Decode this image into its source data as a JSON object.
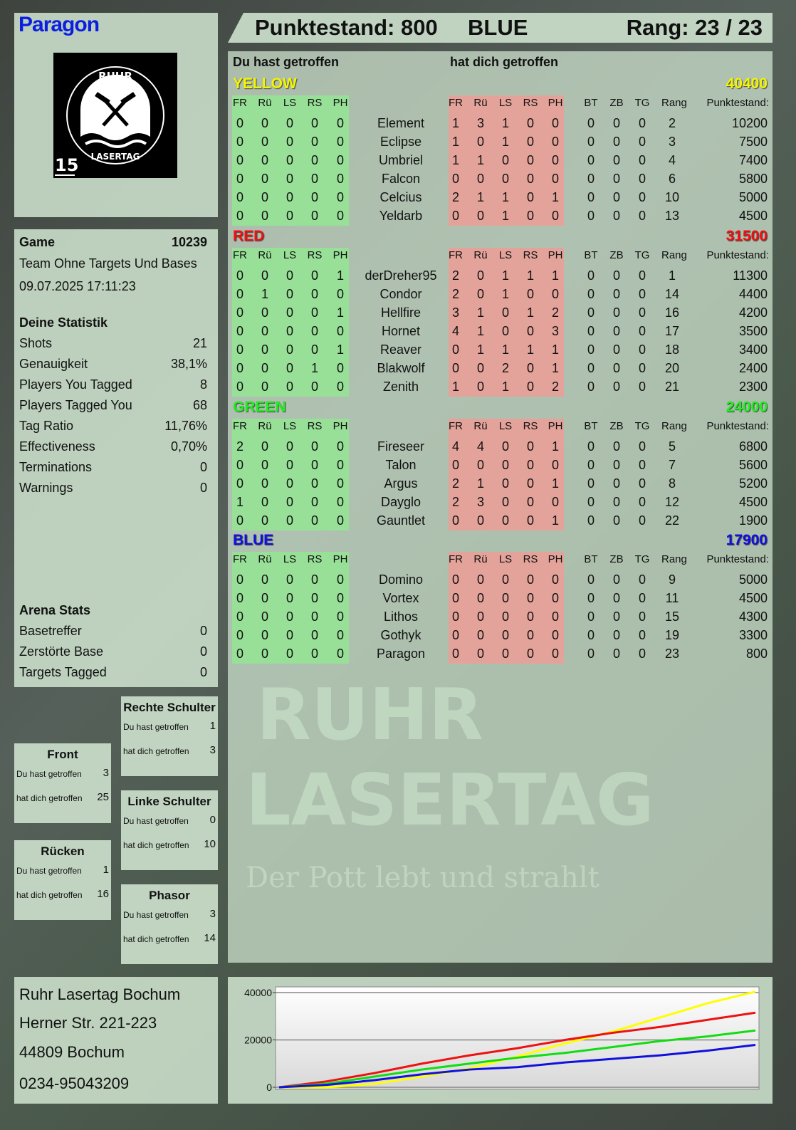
{
  "player": {
    "name": "Paragon",
    "logo_text": "RUHR LASERTAG",
    "logo_number": "15"
  },
  "header": {
    "score_label": "Punktestand: 800",
    "team": "BLUE",
    "rank_label": "Rang: 23 / 23"
  },
  "game": {
    "label": "Game",
    "id": "10239",
    "mode": "Team Ohne Targets Und Bases",
    "datetime": "09.07.2025 17:11:23"
  },
  "stats": {
    "title": "Deine Statistik",
    "items": [
      {
        "label": "Shots",
        "value": "21"
      },
      {
        "label": "Genauigkeit",
        "value": "38,1%"
      },
      {
        "label": "Players You Tagged",
        "value": "8"
      },
      {
        "label": "Players Tagged You",
        "value": "68"
      },
      {
        "label": "Tag Ratio",
        "value": "11,76%"
      },
      {
        "label": "Effectiveness",
        "value": "0,70%"
      },
      {
        "label": "Terminations",
        "value": "0"
      },
      {
        "label": "Warnings",
        "value": "0"
      }
    ]
  },
  "arena": {
    "title": "Arena Stats",
    "items": [
      {
        "label": "Basetreffer",
        "value": "0"
      },
      {
        "label": "Zerstörte Base",
        "value": "0"
      },
      {
        "label": "Targets Tagged",
        "value": "0"
      }
    ]
  },
  "zones": [
    {
      "title": "Rechte Schulter",
      "hit_label": "Du hast getroffen",
      "hit": "1",
      "got_label": "hat dich getroffen",
      "got": "3"
    },
    {
      "title": "Front",
      "hit_label": "Du hast getroffen",
      "hit": "3",
      "got_label": "hat dich getroffen",
      "got": "25"
    },
    {
      "title": "Linke Schulter",
      "hit_label": "Du hast getroffen",
      "hit": "0",
      "got_label": "hat dich getroffen",
      "got": "10"
    },
    {
      "title": "Rücken",
      "hit_label": "Du hast getroffen",
      "hit": "1",
      "got_label": "hat dich getroffen",
      "got": "16"
    },
    {
      "title": "Phasor",
      "hit_label": "Du hast getroffen",
      "hit": "3",
      "got_label": "hat dich getroffen",
      "got": "14"
    }
  ],
  "address": [
    "Ruhr Lasertag Bochum",
    "Herner Str. 221-223",
    "44809 Bochum",
    "0234-95043209"
  ],
  "main": {
    "you_hit": "Du hast getroffen",
    "hit_you": "hat dich getroffen",
    "columns": [
      "FR",
      "Rü",
      "LS",
      "RS",
      "PH",
      "FR",
      "Rü",
      "LS",
      "RS",
      "PH",
      "BT",
      "ZB",
      "TG",
      "Rang",
      "Punktestand:"
    ],
    "teams": [
      {
        "name": "YELLOW",
        "score": "40400",
        "color": "#f5f500",
        "players": [
          {
            "name": "Element",
            "hit": [
              0,
              0,
              0,
              0,
              0
            ],
            "got": [
              1,
              3,
              1,
              0,
              0
            ],
            "bt": 0,
            "zb": 0,
            "tg": 0,
            "rank": 2,
            "score": 10200
          },
          {
            "name": "Eclipse",
            "hit": [
              0,
              0,
              0,
              0,
              0
            ],
            "got": [
              1,
              0,
              1,
              0,
              0
            ],
            "bt": 0,
            "zb": 0,
            "tg": 0,
            "rank": 3,
            "score": 7500
          },
          {
            "name": "Umbriel",
            "hit": [
              0,
              0,
              0,
              0,
              0
            ],
            "got": [
              1,
              1,
              0,
              0,
              0
            ],
            "bt": 0,
            "zb": 0,
            "tg": 0,
            "rank": 4,
            "score": 7400
          },
          {
            "name": "Falcon",
            "hit": [
              0,
              0,
              0,
              0,
              0
            ],
            "got": [
              0,
              0,
              0,
              0,
              0
            ],
            "bt": 0,
            "zb": 0,
            "tg": 0,
            "rank": 6,
            "score": 5800
          },
          {
            "name": "Celcius",
            "hit": [
              0,
              0,
              0,
              0,
              0
            ],
            "got": [
              2,
              1,
              1,
              0,
              1
            ],
            "bt": 0,
            "zb": 0,
            "tg": 0,
            "rank": 10,
            "score": 5000
          },
          {
            "name": "Yeldarb",
            "hit": [
              0,
              0,
              0,
              0,
              0
            ],
            "got": [
              0,
              0,
              1,
              0,
              0
            ],
            "bt": 0,
            "zb": 0,
            "tg": 0,
            "rank": 13,
            "score": 4500
          }
        ]
      },
      {
        "name": "RED",
        "score": "31500",
        "color": "#ee1111",
        "players": [
          {
            "name": "derDreher95",
            "hit": [
              0,
              0,
              0,
              0,
              1
            ],
            "got": [
              2,
              0,
              1,
              1,
              1
            ],
            "bt": 0,
            "zb": 0,
            "tg": 0,
            "rank": 1,
            "score": 11300
          },
          {
            "name": "Condor",
            "hit": [
              0,
              1,
              0,
              0,
              0
            ],
            "got": [
              2,
              0,
              1,
              0,
              0
            ],
            "bt": 0,
            "zb": 0,
            "tg": 0,
            "rank": 14,
            "score": 4400
          },
          {
            "name": "Hellfire",
            "hit": [
              0,
              0,
              0,
              0,
              1
            ],
            "got": [
              3,
              1,
              0,
              1,
              2
            ],
            "bt": 0,
            "zb": 0,
            "tg": 0,
            "rank": 16,
            "score": 4200
          },
          {
            "name": "Hornet",
            "hit": [
              0,
              0,
              0,
              0,
              0
            ],
            "got": [
              4,
              1,
              0,
              0,
              3
            ],
            "bt": 0,
            "zb": 0,
            "tg": 0,
            "rank": 17,
            "score": 3500
          },
          {
            "name": "Reaver",
            "hit": [
              0,
              0,
              0,
              0,
              1
            ],
            "got": [
              0,
              1,
              1,
              1,
              1
            ],
            "bt": 0,
            "zb": 0,
            "tg": 0,
            "rank": 18,
            "score": 3400
          },
          {
            "name": "Blakwolf",
            "hit": [
              0,
              0,
              0,
              1,
              0
            ],
            "got": [
              0,
              0,
              2,
              0,
              1
            ],
            "bt": 0,
            "zb": 0,
            "tg": 0,
            "rank": 20,
            "score": 2400
          },
          {
            "name": "Zenith",
            "hit": [
              0,
              0,
              0,
              0,
              0
            ],
            "got": [
              1,
              0,
              1,
              0,
              2
            ],
            "bt": 0,
            "zb": 0,
            "tg": 0,
            "rank": 21,
            "score": 2300
          }
        ]
      },
      {
        "name": "GREEN",
        "score": "24000",
        "color": "#22ee22",
        "players": [
          {
            "name": "Fireseer",
            "hit": [
              2,
              0,
              0,
              0,
              0
            ],
            "got": [
              4,
              4,
              0,
              0,
              1
            ],
            "bt": 0,
            "zb": 0,
            "tg": 0,
            "rank": 5,
            "score": 6800
          },
          {
            "name": "Talon",
            "hit": [
              0,
              0,
              0,
              0,
              0
            ],
            "got": [
              0,
              0,
              0,
              0,
              0
            ],
            "bt": 0,
            "zb": 0,
            "tg": 0,
            "rank": 7,
            "score": 5600
          },
          {
            "name": "Argus",
            "hit": [
              0,
              0,
              0,
              0,
              0
            ],
            "got": [
              2,
              1,
              0,
              0,
              1
            ],
            "bt": 0,
            "zb": 0,
            "tg": 0,
            "rank": 8,
            "score": 5200
          },
          {
            "name": "Dayglo",
            "hit": [
              1,
              0,
              0,
              0,
              0
            ],
            "got": [
              2,
              3,
              0,
              0,
              0
            ],
            "bt": 0,
            "zb": 0,
            "tg": 0,
            "rank": 12,
            "score": 4500
          },
          {
            "name": "Gauntlet",
            "hit": [
              0,
              0,
              0,
              0,
              0
            ],
            "got": [
              0,
              0,
              0,
              0,
              1
            ],
            "bt": 0,
            "zb": 0,
            "tg": 0,
            "rank": 22,
            "score": 1900
          }
        ]
      },
      {
        "name": "BLUE",
        "score": "17900",
        "color": "#1010dd",
        "players": [
          {
            "name": "Domino",
            "hit": [
              0,
              0,
              0,
              0,
              0
            ],
            "got": [
              0,
              0,
              0,
              0,
              0
            ],
            "bt": 0,
            "zb": 0,
            "tg": 0,
            "rank": 9,
            "score": 5000
          },
          {
            "name": "Vortex",
            "hit": [
              0,
              0,
              0,
              0,
              0
            ],
            "got": [
              0,
              0,
              0,
              0,
              0
            ],
            "bt": 0,
            "zb": 0,
            "tg": 0,
            "rank": 11,
            "score": 4500
          },
          {
            "name": "Lithos",
            "hit": [
              0,
              0,
              0,
              0,
              0
            ],
            "got": [
              0,
              0,
              0,
              0,
              0
            ],
            "bt": 0,
            "zb": 0,
            "tg": 0,
            "rank": 15,
            "score": 4300
          },
          {
            "name": "Gothyk",
            "hit": [
              0,
              0,
              0,
              0,
              0
            ],
            "got": [
              0,
              0,
              0,
              0,
              0
            ],
            "bt": 0,
            "zb": 0,
            "tg": 0,
            "rank": 19,
            "score": 3300
          },
          {
            "name": "Paragon",
            "hit": [
              0,
              0,
              0,
              0,
              0
            ],
            "got": [
              0,
              0,
              0,
              0,
              0
            ],
            "bt": 0,
            "zb": 0,
            "tg": 0,
            "rank": 23,
            "score": 800
          }
        ]
      }
    ]
  },
  "watermark": {
    "line1": "RUHR",
    "line2": "LASERTAG",
    "line3": "Der Pott lebt und strahlt"
  },
  "chart_data": {
    "type": "line",
    "ylim": [
      0,
      40000
    ],
    "yticks": [
      "40000",
      "20000",
      "0"
    ],
    "grid": true,
    "series": [
      {
        "color": "#ffff00",
        "values": [
          0,
          0,
          1500,
          4500,
          8000,
          13000,
          18500,
          23500,
          29500,
          35500,
          40400
        ]
      },
      {
        "color": "#ee1111",
        "values": [
          0,
          2500,
          6000,
          10000,
          13500,
          16500,
          20000,
          23000,
          25500,
          28500,
          31500
        ]
      },
      {
        "color": "#11dd11",
        "values": [
          0,
          1500,
          4500,
          7500,
          10000,
          12500,
          14500,
          17000,
          19500,
          21500,
          24000
        ]
      },
      {
        "color": "#1111dd",
        "values": [
          0,
          1000,
          3000,
          5500,
          7500,
          8500,
          10500,
          12000,
          13500,
          15500,
          17900
        ]
      }
    ]
  }
}
